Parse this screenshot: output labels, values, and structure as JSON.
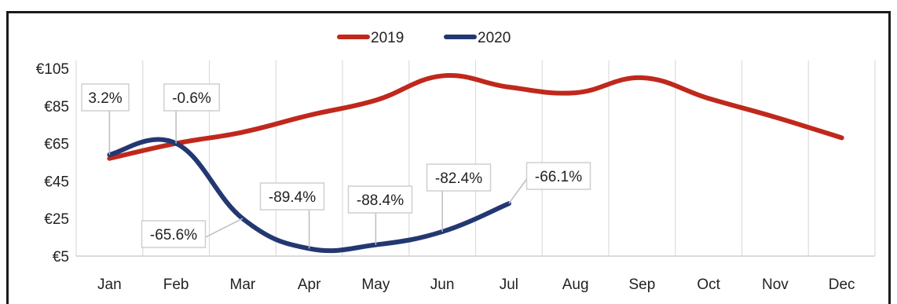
{
  "chart_data": {
    "type": "line",
    "title": "",
    "xlabel": "",
    "ylabel": "",
    "categories": [
      "Jan",
      "Feb",
      "Mar",
      "Apr",
      "May",
      "Jun",
      "Jul",
      "Aug",
      "Sep",
      "Oct",
      "Nov",
      "Dec"
    ],
    "ylim": [
      5,
      105
    ],
    "yticks": [
      5,
      25,
      45,
      65,
      85,
      105
    ],
    "ytick_labels": [
      "€5",
      "€25",
      "€45",
      "€65",
      "€85",
      "€105"
    ],
    "grid": "vertical",
    "legend_position": "top-center",
    "series": [
      {
        "name": "2019",
        "color": "#c0281c",
        "values": [
          57,
          65,
          71,
          80,
          88,
          101,
          95,
          92,
          100,
          89,
          79,
          68
        ]
      },
      {
        "name": "2020",
        "color": "#233872",
        "values": [
          59,
          65,
          25,
          9,
          11,
          18,
          33,
          null,
          null,
          null,
          null,
          null
        ]
      }
    ],
    "annotations": [
      {
        "month": "Jan",
        "text": "3.2%"
      },
      {
        "month": "Feb",
        "text": "-0.6%"
      },
      {
        "month": "Mar",
        "text": "-65.6%"
      },
      {
        "month": "Apr",
        "text": "-89.4%"
      },
      {
        "month": "May",
        "text": "-88.4%"
      },
      {
        "month": "Jun",
        "text": "-82.4%"
      },
      {
        "month": "Jul",
        "text": "-66.1%"
      }
    ]
  }
}
